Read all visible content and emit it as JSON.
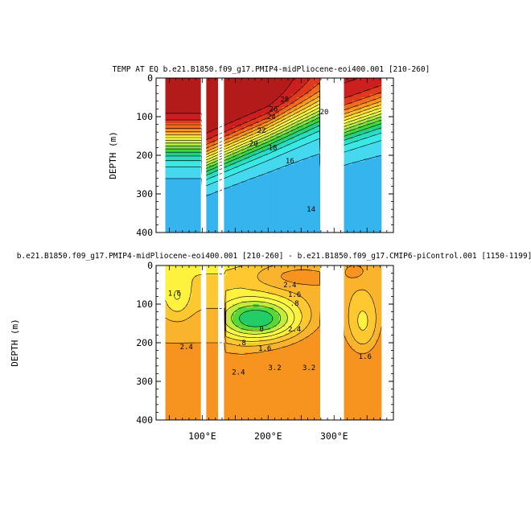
{
  "chart_data": [
    {
      "type": "contour",
      "title": "TEMP AT EQ b.e21.B1850.f09_g17.PMIP4-midPliocene-eoi400.001 [210-260]",
      "ylabel": "DEPTH (m)",
      "xlabel": "",
      "xlim": [
        30,
        390
      ],
      "ylim": [
        400,
        0
      ],
      "yticks": [
        "0",
        "100",
        "200",
        "300",
        "400"
      ],
      "ytick_values": [
        0,
        100,
        200,
        300,
        400
      ],
      "xticks": [],
      "land_gaps_lon": [
        [
          99,
          106
        ],
        [
          124,
          126
        ],
        [
          130,
          133
        ],
        [
          279,
          315
        ]
      ],
      "ocean_extent_lon": [
        44,
        372
      ],
      "contour_labels": [
        {
          "text": "26",
          "lon": 208,
          "depth": 80
        },
        {
          "text": "28",
          "lon": 225,
          "depth": 55
        },
        {
          "text": "24",
          "lon": 205,
          "depth": 100
        },
        {
          "text": "22",
          "lon": 190,
          "depth": 135
        },
        {
          "text": "20",
          "lon": 178,
          "depth": 170
        },
        {
          "text": "18",
          "lon": 207,
          "depth": 180
        },
        {
          "text": "16",
          "lon": 233,
          "depth": 215
        },
        {
          "text": "14",
          "lon": 265,
          "depth": 340
        },
        {
          "text": "20",
          "lon": 285,
          "depth": 87
        }
      ],
      "color_levels": [
        {
          "min": 28,
          "color": "#b31a1a"
        },
        {
          "min": 27,
          "color": "#cc1f1f"
        },
        {
          "min": 26,
          "color": "#e03a1e"
        },
        {
          "min": 25,
          "color": "#f26a1f"
        },
        {
          "min": 24,
          "color": "#fa9620"
        },
        {
          "min": 23,
          "color": "#ffbd2b"
        },
        {
          "min": 22,
          "color": "#ffdf3a"
        },
        {
          "min": 21,
          "color": "#fff84a"
        },
        {
          "min": 20,
          "color": "#e2f04c"
        },
        {
          "min": 19,
          "color": "#b4e94a"
        },
        {
          "min": 18,
          "color": "#7ade46"
        },
        {
          "min": 17,
          "color": "#3cd53a"
        },
        {
          "min": 16,
          "color": "#24d07f"
        },
        {
          "min": 15,
          "color": "#28ddc0"
        },
        {
          "min": 14,
          "color": "#3ae8e6"
        },
        {
          "min": 13,
          "color": "#45d8ef"
        },
        {
          "min": 0,
          "color": "#35b4ee"
        }
      ]
    },
    {
      "type": "contour",
      "title": "b.e21.B1850.f09_g17.PMIP4-midPliocene-eoi400.001 [210-260] - b.e21.B1850.f09_g17.CMIP6-piControl.001 [1150-1199]",
      "ylabel": "DEPTH (m)",
      "xlabel": "",
      "xlim": [
        30,
        390
      ],
      "ylim": [
        400,
        0
      ],
      "yticks": [
        "0",
        "100",
        "200",
        "300",
        "400"
      ],
      "ytick_values": [
        0,
        100,
        200,
        300,
        400
      ],
      "xticks": [
        "100°E",
        "200°E",
        "300°E"
      ],
      "xtick_values": [
        100,
        200,
        300
      ],
      "land_gaps_lon": [
        [
          99,
          106
        ],
        [
          124,
          126
        ],
        [
          130,
          133
        ],
        [
          279,
          315
        ]
      ],
      "ocean_extent_lon": [
        44,
        372
      ],
      "contour_labels": [
        {
          "text": "1.6",
          "lon": 58,
          "depth": 72
        },
        {
          "text": "2.4",
          "lon": 76,
          "depth": 210
        },
        {
          "text": "2.4",
          "lon": 233,
          "depth": 50
        },
        {
          "text": "1.6",
          "lon": 240,
          "depth": 75
        },
        {
          "text": ".8",
          "lon": 240,
          "depth": 98
        },
        {
          "text": "0",
          "lon": 190,
          "depth": 165
        },
        {
          "text": ".8",
          "lon": 160,
          "depth": 200
        },
        {
          "text": "1.6",
          "lon": 195,
          "depth": 215
        },
        {
          "text": "2.4",
          "lon": 240,
          "depth": 165
        },
        {
          "text": "3.2",
          "lon": 210,
          "depth": 265
        },
        {
          "text": "3.2",
          "lon": 262,
          "depth": 265
        },
        {
          "text": "1.6",
          "lon": 347,
          "depth": 235
        },
        {
          "text": "2.4",
          "lon": 155,
          "depth": 276
        }
      ],
      "color_levels": [
        {
          "min": 3.2,
          "color": "#f7931f"
        },
        {
          "min": 2.8,
          "color": "#fab32c"
        },
        {
          "min": 2.4,
          "color": "#fec830"
        },
        {
          "min": 2.0,
          "color": "#fff23f"
        },
        {
          "min": 1.6,
          "color": "#f8f848"
        },
        {
          "min": 1.2,
          "color": "#c2ec3a"
        },
        {
          "min": 0.8,
          "color": "#55d93a"
        },
        {
          "min": 0.4,
          "color": "#22cc66"
        },
        {
          "min": 0.0,
          "color": "#1fd6a6"
        },
        {
          "min": -10,
          "color": "#2bd9e0"
        }
      ]
    }
  ]
}
